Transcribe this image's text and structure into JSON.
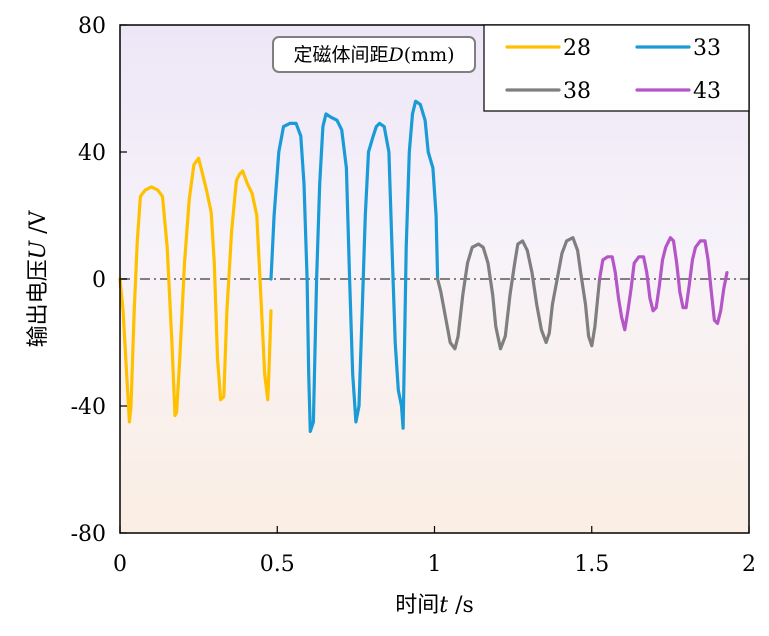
{
  "chart_data": {
    "type": "line",
    "xlabel_prefix": "时间",
    "xlabel_var": "t",
    "xlabel_unit": " /s",
    "ylabel_prefix": "输出电压",
    "ylabel_var": "U",
    "ylabel_unit": " /V",
    "xlim": [
      0,
      2
    ],
    "ylim": [
      -80,
      80
    ],
    "xticks": [
      "0",
      "0.5",
      "1",
      "1.5",
      "2"
    ],
    "yticks": [
      "80",
      "40",
      "0",
      "-40",
      "-80"
    ],
    "xtick_values": [
      0,
      0.5,
      1,
      1.5,
      2
    ],
    "ytick_values": [
      80,
      40,
      0,
      -40,
      -80
    ],
    "grid": false,
    "legend_position": "top-right",
    "annotation": {
      "prefix": "定磁体间距",
      "var": "D",
      "suffix": "(mm)"
    },
    "reference_line": {
      "y": 0,
      "style": "dash-dot",
      "color": "#808080"
    },
    "series": [
      {
        "name": "28",
        "color": "#FFC000",
        "points": [
          [
            0,
            0
          ],
          [
            0.01,
            -10
          ],
          [
            0.02,
            -28
          ],
          [
            0.03,
            -45
          ],
          [
            0.035,
            -40
          ],
          [
            0.045,
            -10
          ],
          [
            0.055,
            12
          ],
          [
            0.065,
            26
          ],
          [
            0.08,
            28
          ],
          [
            0.1,
            29
          ],
          [
            0.12,
            28
          ],
          [
            0.135,
            26
          ],
          [
            0.15,
            10
          ],
          [
            0.165,
            -20
          ],
          [
            0.175,
            -43
          ],
          [
            0.18,
            -42
          ],
          [
            0.19,
            -25
          ],
          [
            0.205,
            5
          ],
          [
            0.22,
            25
          ],
          [
            0.235,
            36
          ],
          [
            0.25,
            38
          ],
          [
            0.26,
            34
          ],
          [
            0.275,
            28
          ],
          [
            0.29,
            21
          ],
          [
            0.3,
            5
          ],
          [
            0.31,
            -25
          ],
          [
            0.32,
            -38
          ],
          [
            0.33,
            -37
          ],
          [
            0.34,
            -10
          ],
          [
            0.355,
            15
          ],
          [
            0.37,
            31
          ],
          [
            0.38,
            33
          ],
          [
            0.39,
            34
          ],
          [
            0.405,
            30
          ],
          [
            0.42,
            27
          ],
          [
            0.435,
            20
          ],
          [
            0.445,
            0
          ],
          [
            0.46,
            -30
          ],
          [
            0.47,
            -38
          ],
          [
            0.475,
            -25
          ],
          [
            0.48,
            -10
          ]
        ]
      },
      {
        "name": "33",
        "color": "#1A9AD6",
        "points": [
          [
            0.48,
            0
          ],
          [
            0.49,
            20
          ],
          [
            0.505,
            40
          ],
          [
            0.52,
            48
          ],
          [
            0.54,
            49
          ],
          [
            0.56,
            49
          ],
          [
            0.575,
            45
          ],
          [
            0.585,
            30
          ],
          [
            0.595,
            0
          ],
          [
            0.6,
            -30
          ],
          [
            0.605,
            -48
          ],
          [
            0.615,
            -45
          ],
          [
            0.625,
            0
          ],
          [
            0.635,
            30
          ],
          [
            0.645,
            48
          ],
          [
            0.655,
            52
          ],
          [
            0.67,
            51
          ],
          [
            0.69,
            50
          ],
          [
            0.705,
            47
          ],
          [
            0.72,
            35
          ],
          [
            0.73,
            0
          ],
          [
            0.74,
            -30
          ],
          [
            0.75,
            -45
          ],
          [
            0.76,
            -40
          ],
          [
            0.77,
            -10
          ],
          [
            0.78,
            20
          ],
          [
            0.79,
            40
          ],
          [
            0.805,
            45
          ],
          [
            0.815,
            48
          ],
          [
            0.825,
            49
          ],
          [
            0.84,
            48
          ],
          [
            0.855,
            40
          ],
          [
            0.865,
            10
          ],
          [
            0.875,
            -20
          ],
          [
            0.885,
            -35
          ],
          [
            0.895,
            -40
          ],
          [
            0.9,
            -47
          ],
          [
            0.905,
            -20
          ],
          [
            0.91,
            10
          ],
          [
            0.92,
            40
          ],
          [
            0.93,
            52
          ],
          [
            0.94,
            56
          ],
          [
            0.955,
            55
          ],
          [
            0.97,
            50
          ],
          [
            0.98,
            40
          ],
          [
            0.995,
            35
          ],
          [
            1.005,
            20
          ],
          [
            1.01,
            0
          ]
        ]
      },
      {
        "name": "38",
        "color": "#7F7F7F",
        "points": [
          [
            1.01,
            0
          ],
          [
            1.02,
            -4
          ],
          [
            1.035,
            -12
          ],
          [
            1.05,
            -20
          ],
          [
            1.065,
            -22
          ],
          [
            1.075,
            -18
          ],
          [
            1.09,
            -5
          ],
          [
            1.105,
            5
          ],
          [
            1.12,
            10
          ],
          [
            1.14,
            11
          ],
          [
            1.155,
            10
          ],
          [
            1.17,
            5
          ],
          [
            1.185,
            -5
          ],
          [
            1.195,
            -15
          ],
          [
            1.21,
            -22
          ],
          [
            1.225,
            -18
          ],
          [
            1.24,
            -5
          ],
          [
            1.255,
            5
          ],
          [
            1.265,
            11
          ],
          [
            1.28,
            12
          ],
          [
            1.295,
            9
          ],
          [
            1.31,
            2
          ],
          [
            1.325,
            -8
          ],
          [
            1.34,
            -16
          ],
          [
            1.355,
            -20
          ],
          [
            1.365,
            -17
          ],
          [
            1.375,
            -8
          ],
          [
            1.39,
            0
          ],
          [
            1.405,
            8
          ],
          [
            1.42,
            12
          ],
          [
            1.44,
            13
          ],
          [
            1.455,
            9
          ],
          [
            1.465,
            2
          ],
          [
            1.48,
            -8
          ],
          [
            1.49,
            -18
          ],
          [
            1.5,
            -21
          ],
          [
            1.51,
            -15
          ],
          [
            1.52,
            -5
          ],
          [
            1.525,
            0
          ]
        ]
      },
      {
        "name": "43",
        "color": "#B455C8",
        "points": [
          [
            1.525,
            0
          ],
          [
            1.535,
            6
          ],
          [
            1.55,
            7
          ],
          [
            1.565,
            7
          ],
          [
            1.575,
            2
          ],
          [
            1.585,
            -6
          ],
          [
            1.595,
            -12
          ],
          [
            1.605,
            -16
          ],
          [
            1.615,
            -10
          ],
          [
            1.625,
            -3
          ],
          [
            1.635,
            5
          ],
          [
            1.65,
            7
          ],
          [
            1.665,
            7
          ],
          [
            1.675,
            2
          ],
          [
            1.685,
            -6
          ],
          [
            1.695,
            -10
          ],
          [
            1.705,
            -9
          ],
          [
            1.715,
            -2
          ],
          [
            1.725,
            6
          ],
          [
            1.735,
            10
          ],
          [
            1.75,
            13
          ],
          [
            1.76,
            12
          ],
          [
            1.77,
            5
          ],
          [
            1.78,
            -4
          ],
          [
            1.79,
            -9
          ],
          [
            1.8,
            -9
          ],
          [
            1.81,
            -2
          ],
          [
            1.82,
            6
          ],
          [
            1.83,
            10
          ],
          [
            1.845,
            12
          ],
          [
            1.86,
            12
          ],
          [
            1.87,
            6
          ],
          [
            1.88,
            -4
          ],
          [
            1.89,
            -13
          ],
          [
            1.9,
            -14
          ],
          [
            1.91,
            -10
          ],
          [
            1.92,
            -3
          ],
          [
            1.93,
            2
          ]
        ]
      }
    ]
  }
}
